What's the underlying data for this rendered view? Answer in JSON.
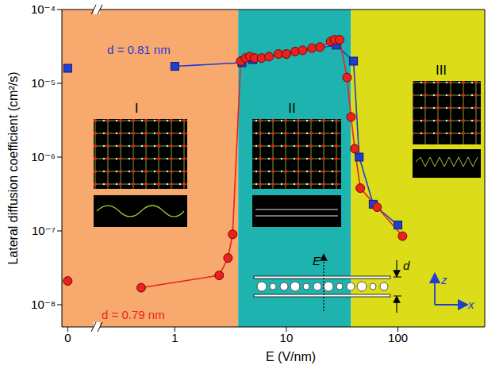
{
  "chart_data": [
    {
      "type": "line",
      "log": "y",
      "xlim": [
        -0.2,
        1
      ],
      "xticks": [
        0
      ],
      "ylim": [
        5e-09,
        0.0001
      ],
      "yticks": [
        {
          "value": 1e-08,
          "label": "10⁻⁸"
        },
        {
          "value": 1e-07,
          "label": "10⁻⁷"
        },
        {
          "value": 1e-06,
          "label": "10⁻⁶"
        },
        {
          "value": 1e-05,
          "label": "10⁻⁵"
        },
        {
          "value": 0.0001,
          "label": "10⁻⁴"
        }
      ],
      "y_label": "Lateral diffusion coefficient (cm²/s)",
      "series": [
        {
          "color": "#1f3fd1",
          "marker": "square",
          "x": [
            0
          ],
          "values": [
            1.6e-05
          ]
        },
        {
          "color": "#e8231f",
          "marker": "circle",
          "x": [
            0
          ],
          "values": [
            2.1e-08
          ]
        }
      ]
    },
    {
      "type": "line",
      "log": true,
      "xlim": [
        0.2,
        600
      ],
      "xticks": [
        1,
        10,
        100
      ],
      "x_label": "E (V/nm)",
      "series": [
        {
          "name": "d = 0.81 nm",
          "color": "#1f3fd1",
          "marker": "square",
          "x": [
            1,
            4,
            5,
            28,
            40,
            45,
            60,
            100
          ],
          "values": [
            1.7e-05,
            1.9e-05,
            2.1e-05,
            3.3e-05,
            2e-05,
            1e-06,
            2.3e-07,
            1.2e-07
          ]
        },
        {
          "name": "d = 0.79 nm",
          "color": "#e8231f",
          "marker": "circle",
          "x": [
            0.5,
            2.5,
            3.0,
            3.3,
            3.9,
            4.3,
            4.7,
            5.2,
            6,
            7,
            8.5,
            10,
            12,
            14,
            17,
            20,
            25,
            27,
            30,
            35,
            38,
            41,
            46,
            65,
            110
          ],
          "values": [
            1.7e-08,
            2.5e-08,
            4.3e-08,
            9e-08,
            2e-05,
            2.2e-05,
            2.3e-05,
            2.2e-05,
            2.2e-05,
            2.3e-05,
            2.5e-05,
            2.5e-05,
            2.7e-05,
            2.8e-05,
            3e-05,
            3.1e-05,
            3.7e-05,
            3.9e-05,
            3.9e-05,
            1.2e-05,
            3.5e-06,
            1.3e-06,
            3.8e-07,
            2.1e-07,
            8.5e-08
          ]
        }
      ],
      "regions": [
        {
          "label": "I",
          "to": 3.7,
          "color": "#f8a96e"
        },
        {
          "label": "II",
          "from": 3.7,
          "to": 38,
          "color": "#1fb3b0"
        },
        {
          "label": "III",
          "from": 38,
          "color": "#dcdc18"
        }
      ],
      "schematic": {
        "field_label": "E",
        "gap_label": "d",
        "axes": [
          "z",
          "x"
        ]
      }
    }
  ]
}
